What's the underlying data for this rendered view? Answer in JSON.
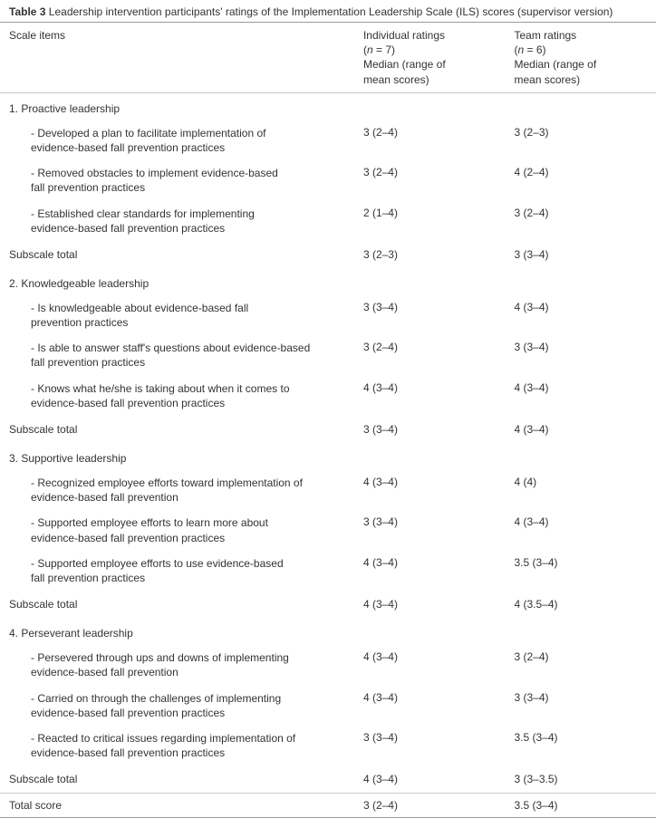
{
  "title_prefix": "Table 3",
  "title_text": " Leadership intervention participants' ratings of the Implementation Leadership Scale (ILS) scores (supervisor version)",
  "header": {
    "col1": "Scale items",
    "col2_l1": "Individual ratings",
    "col2_l2_pre": "(",
    "col2_l2_n": "n",
    "col2_l2_post": " = 7)",
    "col2_l3": "Median (range of",
    "col2_l4": "mean scores)",
    "col3_l1": "Team ratings",
    "col3_l2_pre": "(",
    "col3_l2_n": "n",
    "col3_l2_post": " = 6)",
    "col3_l3": "Median (range of",
    "col3_l4": "mean scores)"
  },
  "sections": [
    {
      "label": "1. Proactive leadership",
      "items": [
        {
          "text_l1": "- Developed a plan to facilitate implementation of",
          "text_l2": "evidence-based fall prevention practices",
          "ind": "3 (2–4)",
          "team": "3 (2–3)"
        },
        {
          "text_l1": "- Removed obstacles to implement evidence-based",
          "text_l2": "fall prevention practices",
          "ind": "3 (2–4)",
          "team": "4 (2–4)"
        },
        {
          "text_l1": "- Established clear standards for implementing",
          "text_l2": "evidence-based fall prevention practices",
          "ind": "2 (1–4)",
          "team": "3 (2–4)"
        }
      ],
      "subtotal": {
        "label": "Subscale total",
        "ind": "3 (2–3)",
        "team": "3 (3–4)"
      }
    },
    {
      "label": "2. Knowledgeable leadership",
      "items": [
        {
          "text_l1": "- Is knowledgeable about evidence-based fall",
          "text_l2": "prevention practices",
          "ind": "3 (3–4)",
          "team": "4 (3–4)"
        },
        {
          "text_l1": "- Is able to answer staff's questions about evidence-based",
          "text_l2": "fall prevention practices",
          "ind": "3 (2–4)",
          "team": "3 (3–4)"
        },
        {
          "text_l1": "- Knows what he/she is taking about when it comes to",
          "text_l2": "evidence-based fall prevention practices",
          "ind": "4 (3–4)",
          "team": "4 (3–4)"
        }
      ],
      "subtotal": {
        "label": "Subscale total",
        "ind": "3 (3–4)",
        "team": "4 (3–4)"
      }
    },
    {
      "label": "3. Supportive leadership",
      "items": [
        {
          "text_l1": "- Recognized employee efforts toward implementation of",
          "text_l2": "evidence-based fall prevention",
          "ind": "4 (3–4)",
          "team": "4 (4)"
        },
        {
          "text_l1": "- Supported employee efforts to learn more about",
          "text_l2": "evidence-based fall prevention practices",
          "ind": "3 (3–4)",
          "team": "4 (3–4)"
        },
        {
          "text_l1": "- Supported employee efforts to use evidence-based",
          "text_l2": "fall prevention practices",
          "ind": "4 (3–4)",
          "team": "3.5 (3–4)"
        }
      ],
      "subtotal": {
        "label": "Subscale total",
        "ind": "4 (3–4)",
        "team": "4 (3.5–4)"
      }
    },
    {
      "label": "4. Perseverant leadership",
      "items": [
        {
          "text_l1": "- Persevered through ups and downs of implementing",
          "text_l2": "evidence-based fall prevention",
          "ind": "4 (3–4)",
          "team": "3 (2–4)"
        },
        {
          "text_l1": "- Carried on through the challenges of implementing",
          "text_l2": "evidence-based fall prevention practices",
          "ind": "4 (3–4)",
          "team": "3 (3–4)"
        },
        {
          "text_l1": "- Reacted to critical issues regarding implementation of",
          "text_l2": "evidence-based fall prevention practices",
          "ind": "3 (3–4)",
          "team": "3.5 (3–4)"
        }
      ],
      "subtotal": {
        "label": "Subscale total",
        "ind": "4 (3–4)",
        "team": "3 (3–3.5)"
      }
    }
  ],
  "total": {
    "label": "Total score",
    "ind": "3 (2–4)",
    "team": "3.5 (3–4)"
  }
}
